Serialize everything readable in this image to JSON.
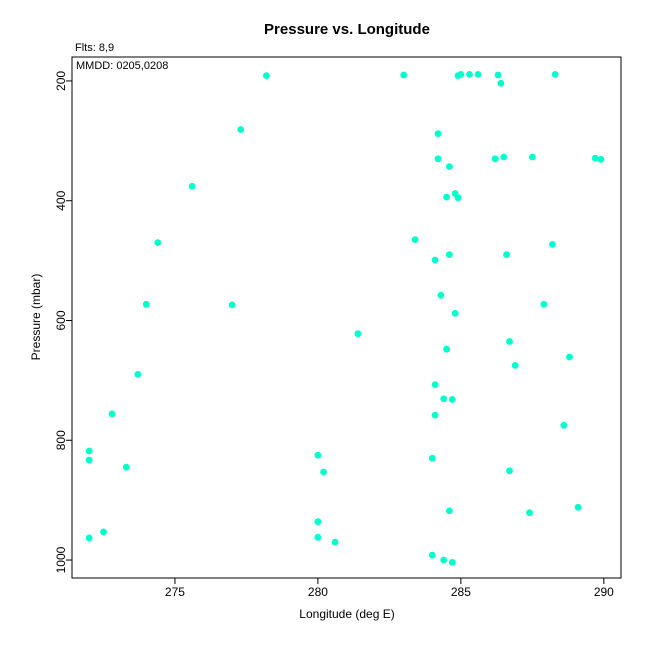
{
  "chart_data": {
    "type": "scatter",
    "title": "Pressure vs. Longitude",
    "annotations": [
      "Flts: 8,9",
      "MMDD: 0205,0208"
    ],
    "xlabel": "Longitude (deg E)",
    "ylabel": "Pressure (mbar)",
    "xlim": [
      271.4,
      290.6
    ],
    "ylim": [
      1030,
      160
    ],
    "y_inverted": true,
    "xticks": [
      275,
      280,
      285,
      290
    ],
    "yticks": [
      200,
      400,
      600,
      800,
      1000
    ],
    "grid": false,
    "point_color": "#00FFCC",
    "points": [
      [
        272.0,
        963
      ],
      [
        272.5,
        953
      ],
      [
        272.0,
        818
      ],
      [
        272.0,
        833
      ],
      [
        272.8,
        756
      ],
      [
        273.3,
        845
      ],
      [
        273.7,
        690
      ],
      [
        274.0,
        573
      ],
      [
        274.4,
        470
      ],
      [
        275.6,
        376
      ],
      [
        277.0,
        574
      ],
      [
        277.3,
        281
      ],
      [
        278.2,
        191
      ],
      [
        280.0,
        936
      ],
      [
        280.0,
        962
      ],
      [
        280.0,
        825
      ],
      [
        280.2,
        853
      ],
      [
        280.6,
        970
      ],
      [
        281.4,
        622
      ],
      [
        283.0,
        190
      ],
      [
        283.4,
        465
      ],
      [
        284.0,
        992
      ],
      [
        284.0,
        830
      ],
      [
        284.1,
        707
      ],
      [
        284.1,
        758
      ],
      [
        284.1,
        499
      ],
      [
        284.2,
        288
      ],
      [
        284.2,
        330
      ],
      [
        284.3,
        558
      ],
      [
        284.4,
        1000
      ],
      [
        284.4,
        731
      ],
      [
        284.5,
        648
      ],
      [
        284.5,
        394
      ],
      [
        284.6,
        343
      ],
      [
        284.6,
        490
      ],
      [
        284.6,
        918
      ],
      [
        284.7,
        1004
      ],
      [
        284.7,
        732
      ],
      [
        284.8,
        588
      ],
      [
        284.8,
        388
      ],
      [
        284.9,
        395
      ],
      [
        284.9,
        191
      ],
      [
        285.0,
        189
      ],
      [
        285.3,
        189
      ],
      [
        285.6,
        189
      ],
      [
        286.2,
        330
      ],
      [
        286.3,
        190
      ],
      [
        286.4,
        204
      ],
      [
        286.5,
        327
      ],
      [
        286.6,
        490
      ],
      [
        286.7,
        635
      ],
      [
        286.7,
        851
      ],
      [
        286.9,
        675
      ],
      [
        287.4,
        921
      ],
      [
        287.5,
        327
      ],
      [
        287.9,
        573
      ],
      [
        288.2,
        473
      ],
      [
        288.3,
        189
      ],
      [
        288.6,
        775
      ],
      [
        288.8,
        661
      ],
      [
        289.1,
        912
      ],
      [
        289.7,
        329
      ],
      [
        289.9,
        331
      ]
    ]
  }
}
